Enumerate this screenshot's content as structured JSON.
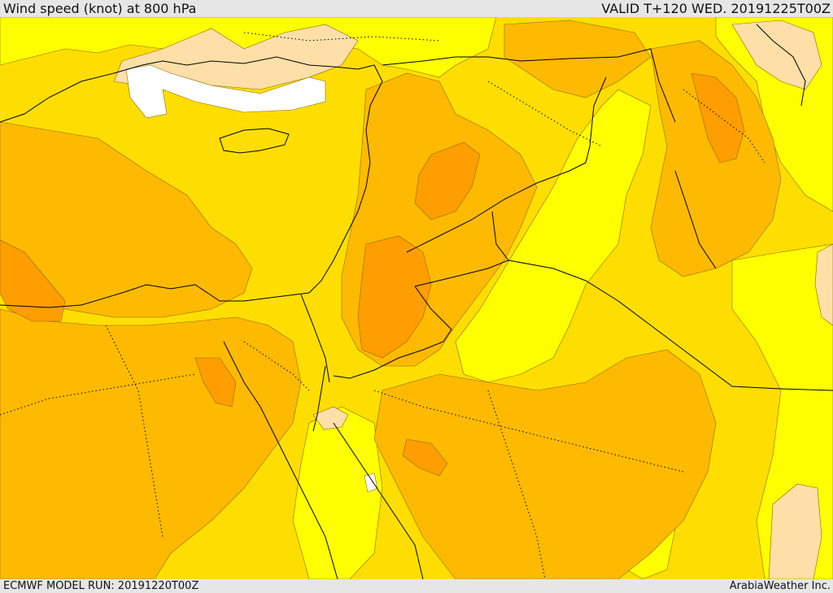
{
  "header": {
    "title": "Wind speed (knot) at 800 hPa",
    "valid": "VALID T+120 WED. 20191225T00Z"
  },
  "footer": {
    "model_run": "ECMWF MODEL RUN: 20191220T00Z",
    "credit": "ArabiaWeather Inc."
  },
  "map": {
    "variable": "wind speed",
    "units": "knot",
    "level": "800 hPa",
    "colors": {
      "white": "#ffffff",
      "peach": "#fedfa8",
      "yellow": "#fffe00",
      "gold": "#fede00",
      "light-orange": "#feba00",
      "orange": "#fe9e00",
      "border": "#000000"
    }
  }
}
